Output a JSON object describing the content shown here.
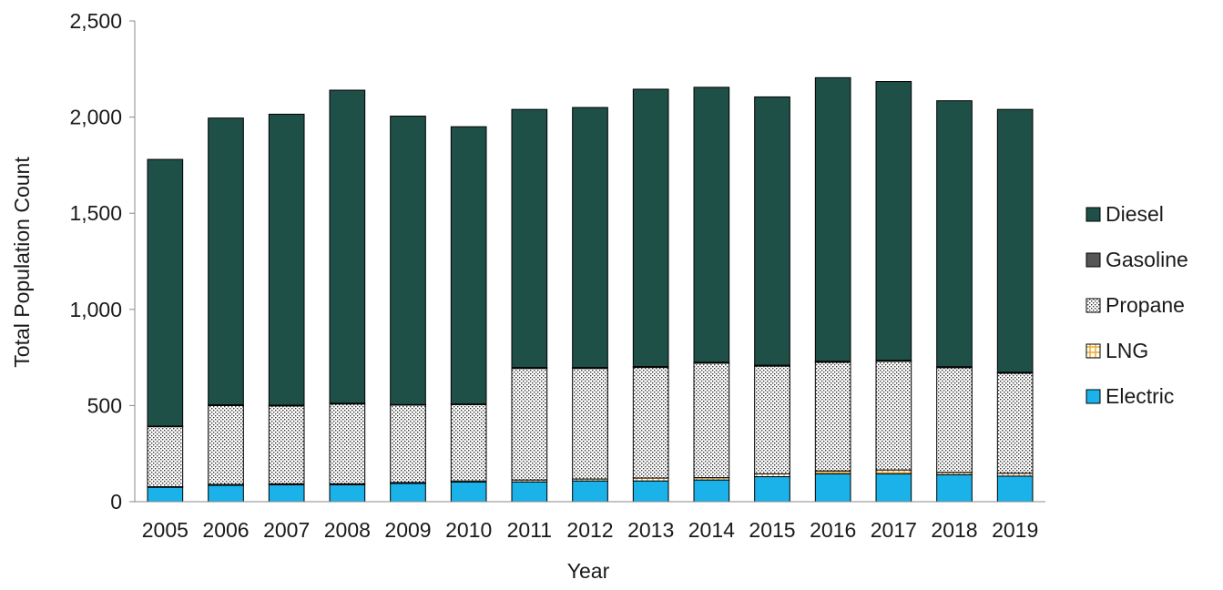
{
  "chart_data": {
    "type": "bar",
    "stacked": true,
    "title": "",
    "xlabel": "Year",
    "ylabel": "Total Population Count",
    "ylim": [
      0,
      2500
    ],
    "yticks": [
      0,
      500,
      1000,
      1500,
      2000,
      2500
    ],
    "ytick_labels": [
      "0",
      "500",
      "1,000",
      "1,500",
      "2,000",
      "2,500"
    ],
    "categories": [
      "2005",
      "2006",
      "2007",
      "2008",
      "2009",
      "2010",
      "2011",
      "2012",
      "2013",
      "2014",
      "2015",
      "2016",
      "2017",
      "2018",
      "2019"
    ],
    "grid": false,
    "legend_position": "right",
    "series": [
      {
        "name": "Electric",
        "color": "#1ab2e8",
        "pattern": "solid",
        "values": [
          75,
          85,
          88,
          88,
          95,
          102,
          103,
          108,
          108,
          113,
          130,
          145,
          145,
          140,
          133
        ]
      },
      {
        "name": "LNG",
        "color": "#f0a830",
        "pattern": "grid",
        "values": [
          3,
          5,
          5,
          5,
          5,
          6,
          10,
          10,
          15,
          12,
          15,
          15,
          20,
          12,
          15
        ]
      },
      {
        "name": "Propane",
        "color": "#ffffff",
        "pattern": "dots",
        "values": [
          312,
          410,
          405,
          415,
          402,
          397,
          580,
          575,
          575,
          595,
          560,
          565,
          565,
          545,
          520
        ]
      },
      {
        "name": "Gasoline",
        "color": "#555555",
        "pattern": "solid",
        "values": [
          3,
          4,
          4,
          4,
          3,
          3,
          5,
          5,
          5,
          5,
          5,
          5,
          5,
          5,
          5
        ]
      },
      {
        "name": "Diesel",
        "color": "#1e5048",
        "pattern": "solid",
        "values": [
          1387,
          1491,
          1513,
          1628,
          1500,
          1442,
          1342,
          1352,
          1442,
          1430,
          1395,
          1475,
          1450,
          1383,
          1367
        ]
      }
    ],
    "legend_order": [
      "Diesel",
      "Gasoline",
      "Propane",
      "LNG",
      "Electric"
    ]
  }
}
